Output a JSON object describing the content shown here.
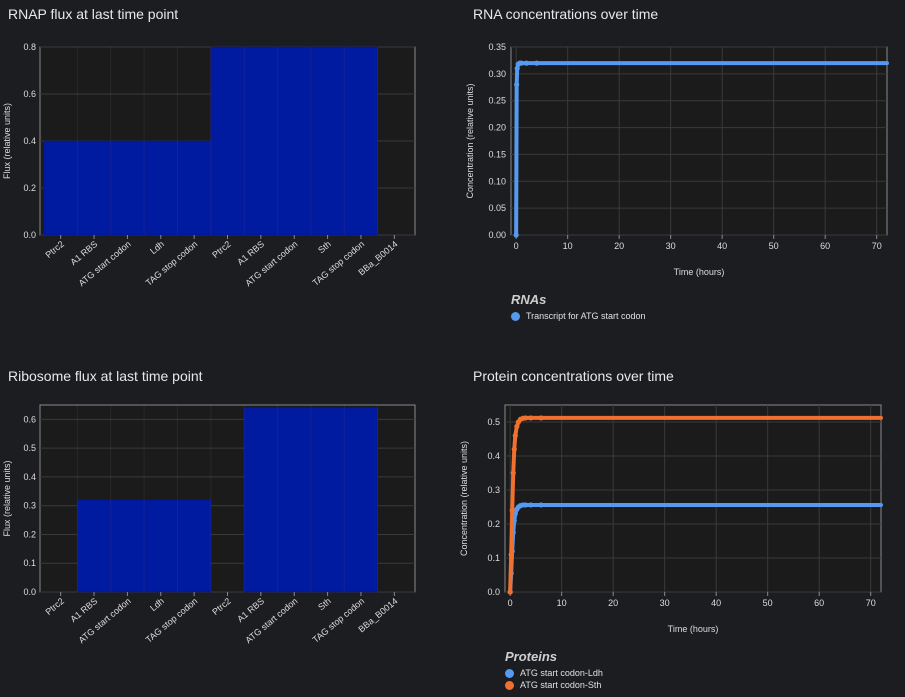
{
  "colors": {
    "background": "#1c1d20",
    "plot_background": "#1b1b1b",
    "grid": "#3a3a3a",
    "bar": "#001aa0",
    "rna_line": "#5599f0",
    "protein_ldh": "#5599f0",
    "protein_sth": "#f07030"
  },
  "panels": {
    "rnap": {
      "title": "RNAP flux at last time point"
    },
    "rna": {
      "title": "RNA concentrations over time",
      "legend_title": "RNAs",
      "legend_items": [
        "Transcript for ATG start codon"
      ]
    },
    "ribosome": {
      "title": "Ribosome flux at last time point"
    },
    "protein": {
      "title": "Protein concentrations over time",
      "legend_title": "Proteins",
      "legend_items": [
        "ATG start codon-Ldh",
        "ATG start codon-Sth"
      ]
    }
  },
  "chart_data": [
    {
      "id": "rnap",
      "type": "bar",
      "title": "RNAP flux at last time point",
      "ylabel": "Flux (relative units)",
      "xlabel": "",
      "categories": [
        "Ptrc2",
        "A1 RBS",
        "ATG start codon",
        "Ldh",
        "TAG stop codon",
        "Ptrc2",
        "A1 RBS",
        "ATG start codon",
        "Sth",
        "TAG stop codon",
        "BBa_B0014"
      ],
      "values": [
        0.4,
        0.4,
        0.4,
        0.4,
        0.4,
        0.8,
        0.8,
        0.8,
        0.8,
        0.8,
        0.0
      ],
      "ylim": [
        0,
        0.8
      ],
      "yticks": [
        "0.0",
        "0.2",
        "0.4",
        "0.6",
        "0.8"
      ],
      "grid": true
    },
    {
      "id": "rna",
      "type": "line",
      "title": "RNA concentrations over time",
      "xlabel": "Time (hours)",
      "ylabel": "Concentration (relative units)",
      "xlim": [
        -1,
        72
      ],
      "ylim": [
        0,
        0.35
      ],
      "xticks": [
        "0",
        "10",
        "20",
        "30",
        "40",
        "50",
        "60",
        "70"
      ],
      "yticks": [
        "0.00",
        "0.05",
        "0.10",
        "0.15",
        "0.20",
        "0.25",
        "0.30",
        "0.35"
      ],
      "legend": "bottom",
      "grid": true,
      "series": [
        {
          "name": "Transcript for ATG start codon",
          "color": "#5599f0",
          "x": [
            0,
            0.1,
            0.2,
            0.4,
            0.7,
            1,
            2,
            4,
            10,
            20,
            30,
            40,
            50,
            60,
            72
          ],
          "y": [
            0,
            0.28,
            0.31,
            0.318,
            0.32,
            0.32,
            0.32,
            0.32,
            0.32,
            0.32,
            0.32,
            0.32,
            0.32,
            0.32,
            0.32
          ]
        }
      ]
    },
    {
      "id": "ribosome",
      "type": "bar",
      "title": "Ribosome flux at last time point",
      "ylabel": "Flux (relative units)",
      "xlabel": "",
      "categories": [
        "Ptrc2",
        "A1 RBS",
        "ATG start codon",
        "Ldh",
        "TAG stop codon",
        "Ptrc2",
        "A1 RBS",
        "ATG start codon",
        "Sth",
        "TAG stop codon",
        "BBa_B0014"
      ],
      "values": [
        0.0,
        0.32,
        0.32,
        0.32,
        0.32,
        0.0,
        0.64,
        0.64,
        0.64,
        0.64,
        0.0
      ],
      "ylim": [
        0,
        0.65
      ],
      "yticks": [
        "0.0",
        "0.1",
        "0.2",
        "0.3",
        "0.4",
        "0.5",
        "0.6"
      ],
      "grid": true
    },
    {
      "id": "protein",
      "type": "line",
      "title": "Protein concentrations over time",
      "xlabel": "Time (hours)",
      "ylabel": "Concentration (relative units)",
      "xlim": [
        -1,
        72
      ],
      "ylim": [
        0,
        0.55
      ],
      "xticks": [
        "0",
        "10",
        "20",
        "30",
        "40",
        "50",
        "60",
        "70"
      ],
      "yticks": [
        "0.0",
        "0.1",
        "0.2",
        "0.3",
        "0.4",
        "0.5"
      ],
      "legend": "bottom",
      "grid": true,
      "series": [
        {
          "name": "ATG start codon-Ldh",
          "color": "#5599f0",
          "x": [
            0,
            0.2,
            0.4,
            0.6,
            0.8,
            1,
            1.3,
            1.6,
            2,
            2.5,
            3,
            4,
            6,
            10,
            20,
            30,
            40,
            50,
            60,
            72
          ],
          "y": [
            0,
            0.055,
            0.12,
            0.175,
            0.21,
            0.23,
            0.243,
            0.25,
            0.254,
            0.256,
            0.256,
            0.256,
            0.256,
            0.256,
            0.256,
            0.256,
            0.256,
            0.256,
            0.256,
            0.256
          ]
        },
        {
          "name": "ATG start codon-Sth",
          "color": "#f07030",
          "x": [
            0,
            0.2,
            0.4,
            0.6,
            0.8,
            1,
            1.3,
            1.6,
            2,
            2.5,
            3,
            4,
            6,
            10,
            20,
            30,
            40,
            50,
            60,
            72
          ],
          "y": [
            0,
            0.11,
            0.24,
            0.35,
            0.42,
            0.46,
            0.487,
            0.5,
            0.508,
            0.511,
            0.512,
            0.512,
            0.512,
            0.512,
            0.512,
            0.512,
            0.512,
            0.512,
            0.512,
            0.512
          ]
        }
      ]
    }
  ]
}
